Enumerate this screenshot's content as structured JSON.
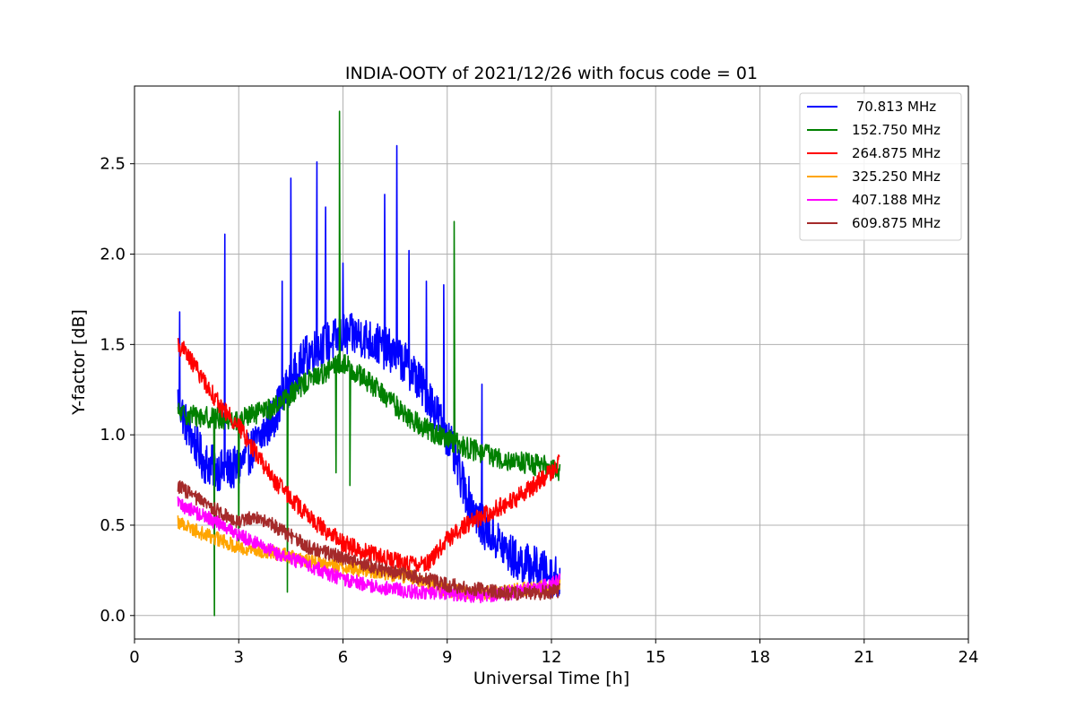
{
  "chart_data": {
    "type": "line",
    "title": "INDIA-OOTY of 2021/12/26 with focus code = 01",
    "xlabel": "Universal Time [h]",
    "ylabel": "Y-factor [dB]",
    "xlim": [
      0,
      24
    ],
    "ylim": [
      -0.13,
      2.93
    ],
    "xticks": [
      0,
      3,
      6,
      9,
      12,
      15,
      18,
      21,
      24
    ],
    "xtick_labels": [
      "0",
      "3",
      "6",
      "9",
      "12",
      "15",
      "18",
      "21",
      "24"
    ],
    "yticks": [
      0.0,
      0.5,
      1.0,
      1.5,
      2.0,
      2.5
    ],
    "ytick_labels": [
      "0.0",
      "0.5",
      "1.0",
      "1.5",
      "2.0",
      "2.5"
    ],
    "grid": true,
    "legend_position": "top-right",
    "series": [
      {
        "name": " 70.813 MHz",
        "color": "#0000ff",
        "noise": 0.12,
        "x": [
          1.25,
          1.5,
          2,
          2.5,
          3,
          3.5,
          4,
          4.5,
          5,
          5.5,
          6,
          6.5,
          7,
          7.5,
          8,
          8.5,
          9,
          9.5,
          10,
          10.5,
          11,
          11.5,
          12,
          12.25
        ],
        "y": [
          1.2,
          1.05,
          0.85,
          0.8,
          0.82,
          0.95,
          1.1,
          1.3,
          1.45,
          1.5,
          1.55,
          1.55,
          1.5,
          1.45,
          1.35,
          1.2,
          1.0,
          0.7,
          0.5,
          0.4,
          0.3,
          0.27,
          0.22,
          0.2
        ],
        "spikes": [
          [
            1.3,
            1.68
          ],
          [
            2.6,
            2.11
          ],
          [
            4.25,
            1.85
          ],
          [
            4.5,
            2.42
          ],
          [
            5.25,
            2.51
          ],
          [
            5.5,
            2.26
          ],
          [
            6.0,
            1.95
          ],
          [
            7.2,
            2.33
          ],
          [
            7.55,
            2.6
          ],
          [
            7.9,
            2.02
          ],
          [
            8.4,
            1.85
          ],
          [
            8.9,
            1.83
          ],
          [
            10.0,
            1.28
          ]
        ]
      },
      {
        "name": "152.750 MHz",
        "color": "#008000",
        "noise": 0.06,
        "x": [
          1.25,
          2,
          3,
          4,
          5,
          6,
          7,
          8,
          9,
          10,
          11,
          12,
          12.25
        ],
        "y": [
          1.12,
          1.1,
          1.08,
          1.15,
          1.3,
          1.4,
          1.25,
          1.08,
          0.97,
          0.9,
          0.85,
          0.82,
          0.8
        ],
        "spikes": [
          [
            2.3,
            0.0
          ],
          [
            3.0,
            0.38
          ],
          [
            4.4,
            0.13
          ],
          [
            5.9,
            2.79
          ],
          [
            5.8,
            0.79
          ],
          [
            6.2,
            0.72
          ],
          [
            9.2,
            2.18
          ]
        ]
      },
      {
        "name": "264.875 MHz",
        "color": "#ff0000",
        "noise": 0.05,
        "x": [
          1.25,
          1.5,
          2,
          2.5,
          3,
          3.5,
          4,
          4.5,
          5,
          5.5,
          6,
          6.5,
          7,
          7.5,
          8,
          8.5,
          9,
          9.5,
          10,
          10.5,
          11,
          11.5,
          12,
          12.25
        ],
        "y": [
          1.5,
          1.45,
          1.3,
          1.15,
          1.05,
          0.9,
          0.75,
          0.65,
          0.55,
          0.47,
          0.4,
          0.36,
          0.33,
          0.3,
          0.28,
          0.3,
          0.42,
          0.5,
          0.55,
          0.6,
          0.65,
          0.72,
          0.8,
          0.85
        ],
        "spikes": []
      },
      {
        "name": "325.250 MHz",
        "color": "#ffa500",
        "noise": 0.04,
        "x": [
          1.25,
          2,
          3,
          4,
          5,
          6,
          7,
          8,
          9,
          10,
          11,
          12,
          12.25
        ],
        "y": [
          0.52,
          0.45,
          0.38,
          0.35,
          0.3,
          0.27,
          0.24,
          0.21,
          0.14,
          0.12,
          0.14,
          0.16,
          0.17
        ],
        "spikes": []
      },
      {
        "name": "407.188 MHz",
        "color": "#ff00ff",
        "noise": 0.04,
        "x": [
          1.25,
          2,
          3,
          4,
          5,
          6,
          7,
          8,
          9,
          10,
          11,
          12,
          12.25
        ],
        "y": [
          0.62,
          0.55,
          0.45,
          0.35,
          0.28,
          0.2,
          0.16,
          0.13,
          0.12,
          0.11,
          0.13,
          0.17,
          0.2
        ],
        "spikes": []
      },
      {
        "name": "609.875 MHz",
        "color": "#a52a2a",
        "noise": 0.04,
        "x": [
          1.25,
          2,
          3,
          3.5,
          4,
          5,
          6,
          7,
          8,
          9,
          10,
          11,
          12,
          12.25
        ],
        "y": [
          0.72,
          0.62,
          0.52,
          0.55,
          0.5,
          0.38,
          0.32,
          0.26,
          0.22,
          0.17,
          0.14,
          0.12,
          0.13,
          0.14
        ],
        "spikes": []
      }
    ]
  }
}
